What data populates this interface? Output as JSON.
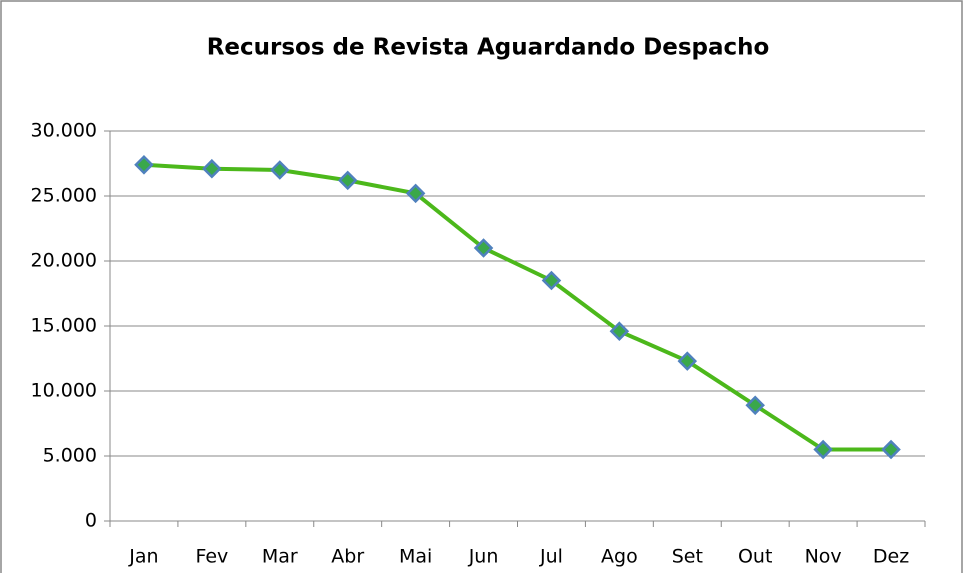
{
  "chart_data": {
    "type": "line",
    "title": "Recursos de Revista Aguardando  Despacho",
    "categories": [
      "Jan",
      "Fev",
      "Mar",
      "Abr",
      "Mai",
      "Jun",
      "Jul",
      "Ago",
      "Set",
      "Out",
      "Nov",
      "Dez"
    ],
    "values": [
      27400,
      27100,
      27000,
      26200,
      25200,
      21000,
      18500,
      14600,
      12300,
      8900,
      5500,
      5500
    ],
    "color": "#4cb81b",
    "ylim": [
      0,
      30000
    ],
    "yticks": [
      0,
      {
        "value": 5000,
        "label": "5.000"
      },
      {
        "value": 10000,
        "label": "10.000"
      },
      {
        "value": 15000,
        "label": "15.000"
      },
      {
        "value": 20000,
        "label": "20.000"
      },
      {
        "value": 25000,
        "label": "25.000"
      },
      {
        "value": 30000,
        "label": "30.000"
      }
    ],
    "grid": true
  }
}
